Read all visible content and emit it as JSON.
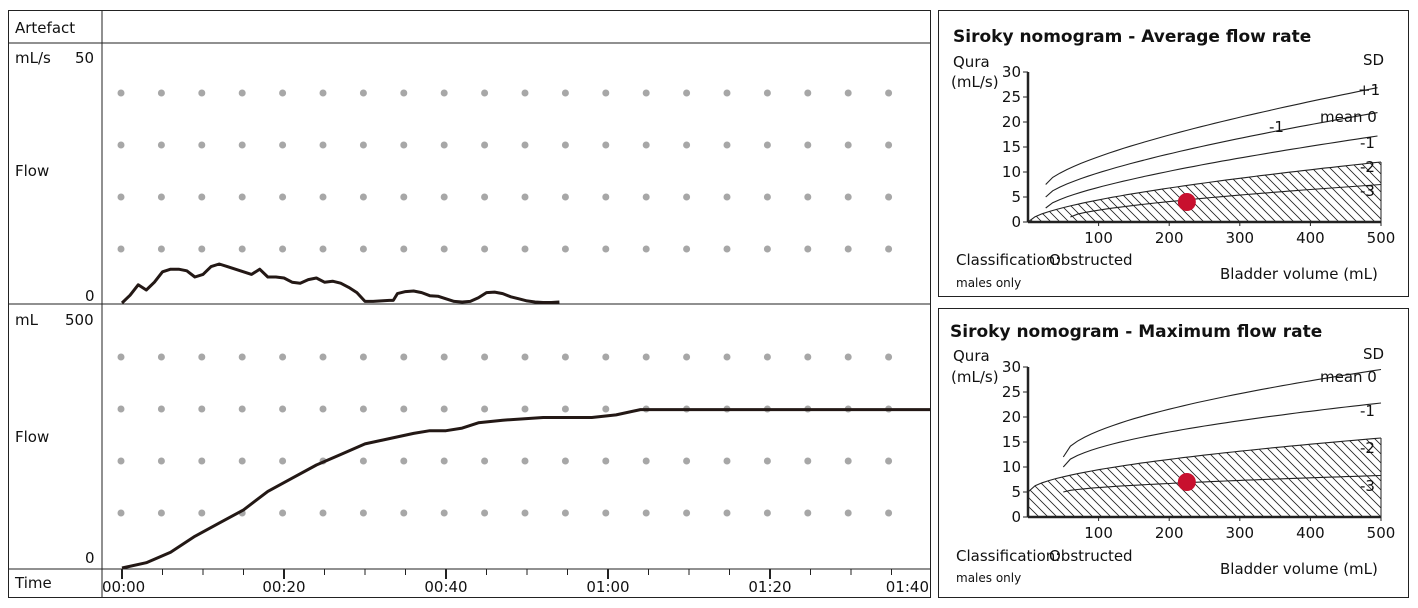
{
  "charts": {
    "artefact_label": "Artefact",
    "flow": {
      "unit": "mL/s",
      "max_label": "50",
      "zero_label": "0",
      "name": "Flow",
      "ymax": 50,
      "points": [
        [
          0,
          0
        ],
        [
          1,
          1.5
        ],
        [
          2,
          3.5
        ],
        [
          3,
          2.5
        ],
        [
          4,
          4
        ],
        [
          5,
          6
        ],
        [
          6,
          6.5
        ],
        [
          7,
          6.5
        ],
        [
          8,
          6.2
        ],
        [
          9,
          5
        ],
        [
          10,
          5.5
        ],
        [
          11,
          7
        ],
        [
          12,
          7.5
        ],
        [
          13,
          7
        ],
        [
          14,
          6.5
        ],
        [
          15,
          6
        ],
        [
          16,
          5.5
        ],
        [
          17,
          6.5
        ],
        [
          18,
          5
        ],
        [
          19,
          5
        ],
        [
          20,
          4.8
        ],
        [
          21,
          4
        ],
        [
          22,
          3.8
        ],
        [
          23,
          4.5
        ],
        [
          24,
          4.8
        ],
        [
          25,
          4
        ],
        [
          26,
          4.2
        ],
        [
          27,
          3.8
        ],
        [
          28,
          3
        ],
        [
          29,
          2
        ],
        [
          30,
          0.3
        ],
        [
          31,
          0.3
        ],
        [
          32,
          0.4
        ],
        [
          33,
          0.5
        ],
        [
          33.5,
          0.5
        ],
        [
          34,
          1.8
        ],
        [
          35,
          2.2
        ],
        [
          36,
          2.3
        ],
        [
          37,
          2
        ],
        [
          38,
          1.4
        ],
        [
          39,
          1.3
        ],
        [
          40,
          0.8
        ],
        [
          41,
          0.3
        ],
        [
          42,
          0.2
        ],
        [
          43,
          0.3
        ],
        [
          44,
          1
        ],
        [
          45,
          2
        ],
        [
          46,
          2.1
        ],
        [
          47,
          1.8
        ],
        [
          48,
          1.2
        ],
        [
          49,
          0.8
        ],
        [
          50,
          0.4
        ],
        [
          51,
          0.2
        ],
        [
          52,
          0.1
        ],
        [
          53,
          0.1
        ],
        [
          54,
          0.2
        ]
      ]
    },
    "volume": {
      "unit": "mL",
      "max_label": "500",
      "zero_label": "0",
      "name": "Flow",
      "ymax": 500,
      "points": [
        [
          0,
          0
        ],
        [
          3,
          10
        ],
        [
          6,
          30
        ],
        [
          9,
          60
        ],
        [
          12,
          85
        ],
        [
          15,
          110
        ],
        [
          18,
          145
        ],
        [
          21,
          170
        ],
        [
          24,
          195
        ],
        [
          27,
          215
        ],
        [
          30,
          235
        ],
        [
          33,
          245
        ],
        [
          36,
          255
        ],
        [
          38,
          260
        ],
        [
          40,
          260
        ],
        [
          42,
          265
        ],
        [
          44,
          275
        ],
        [
          47,
          280
        ],
        [
          52,
          285
        ],
        [
          58,
          285
        ],
        [
          61,
          290
        ],
        [
          64,
          300
        ],
        [
          100,
          300
        ]
      ]
    },
    "time_axis": {
      "label": "Time",
      "ticks": [
        "00:00",
        "00:20",
        "00:40",
        "01:00",
        "01:20",
        "01:40"
      ],
      "max_seconds": 100
    }
  },
  "nomograms": [
    {
      "title": "Siroky nomogram - Average flow rate",
      "ylabel_1": "Qura",
      "ylabel_2": "(mL/s)",
      "xlabel": "Bladder volume (mL)",
      "sd_label": "SD",
      "yticks": [
        "30",
        "25",
        "20",
        "15",
        "10",
        "5",
        "0"
      ],
      "xticks": [
        "100",
        "200",
        "300",
        "400",
        "500"
      ],
      "curve_labels": [
        "+1",
        "mean 0",
        "-1",
        "-2",
        "-3",
        "-1"
      ],
      "classification_label": "Classification:",
      "classification_value": "Obstructed",
      "note": "males only",
      "patient_point": {
        "volume": 225,
        "flow": 4
      },
      "red": "#c8102e"
    },
    {
      "title": "Siroky nomogram - Maximum flow rate",
      "ylabel_1": "Qura",
      "ylabel_2": "(mL/s)",
      "xlabel": "Bladder volume (mL)",
      "sd_label": "SD",
      "yticks": [
        "30",
        "25",
        "20",
        "15",
        "10",
        "5",
        "0"
      ],
      "xticks": [
        "100",
        "200",
        "300",
        "400",
        "500"
      ],
      "curve_labels": [
        "mean 0",
        "-1",
        "-2",
        "-3"
      ],
      "classification_label": "Classification:",
      "classification_value": "Obstructed",
      "note": "males only",
      "patient_point": {
        "volume": 225,
        "flow": 7
      },
      "red": "#c8102e"
    }
  ]
}
